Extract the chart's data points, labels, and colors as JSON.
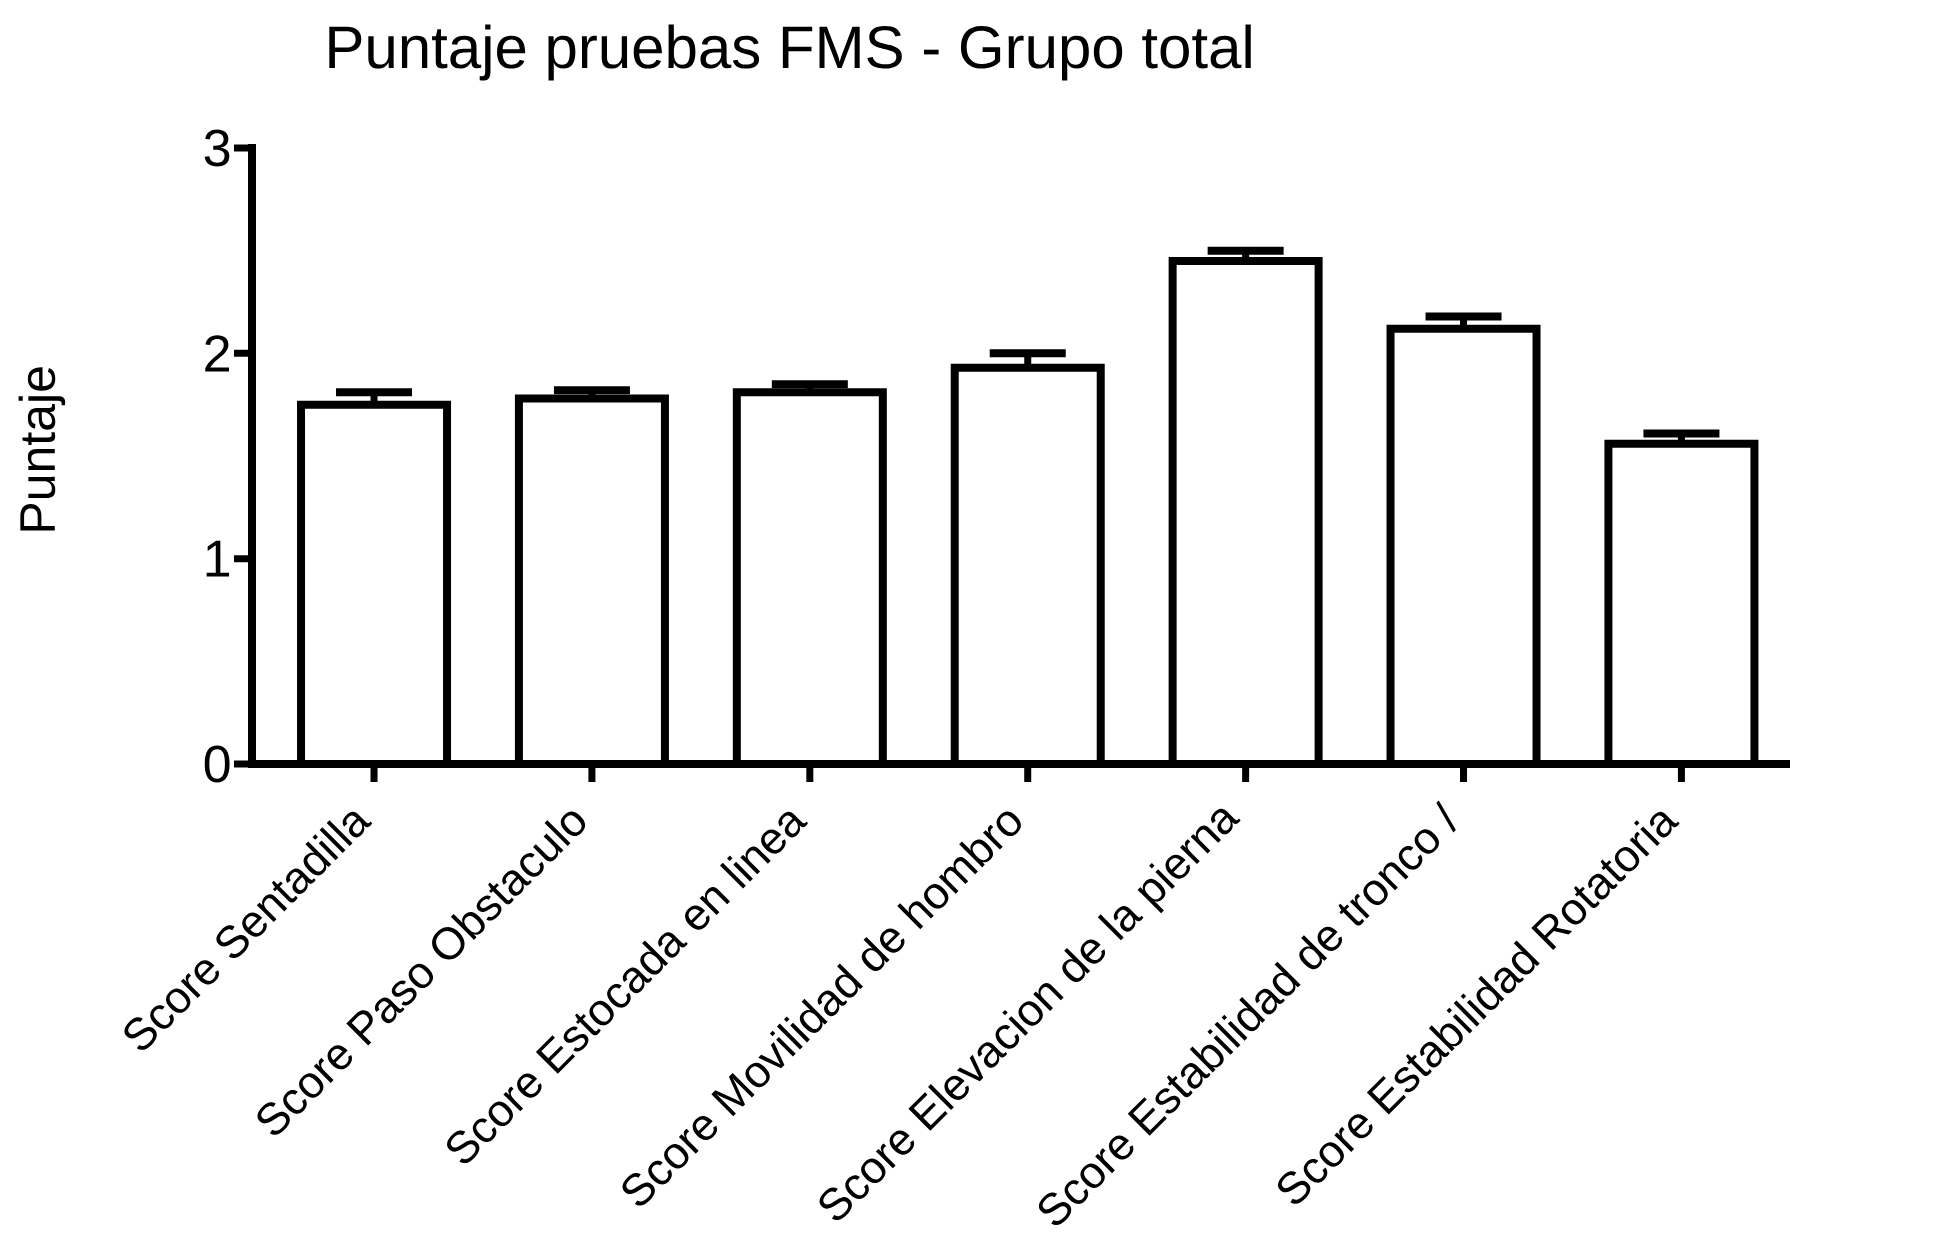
{
  "chart_data": {
    "type": "bar",
    "title": "Puntaje pruebas FMS - Grupo total",
    "ylabel": "Puntaje",
    "categories": [
      "Score Sentadilla",
      "Score Paso Obstaculo",
      "Score Estocada en linea",
      "Score Movilidad de hombro",
      "Score Elevacion de la pierna",
      "Score Estabilidad de tronco /",
      "Score Estabilidad Rotatoria"
    ],
    "values": [
      1.75,
      1.78,
      1.81,
      1.93,
      2.45,
      2.12,
      1.56
    ],
    "errors": [
      0.06,
      0.04,
      0.04,
      0.07,
      0.05,
      0.06,
      0.05
    ],
    "color": "#000000",
    "ylim": [
      0,
      3
    ],
    "yticks": [
      0,
      1,
      2,
      3
    ]
  }
}
